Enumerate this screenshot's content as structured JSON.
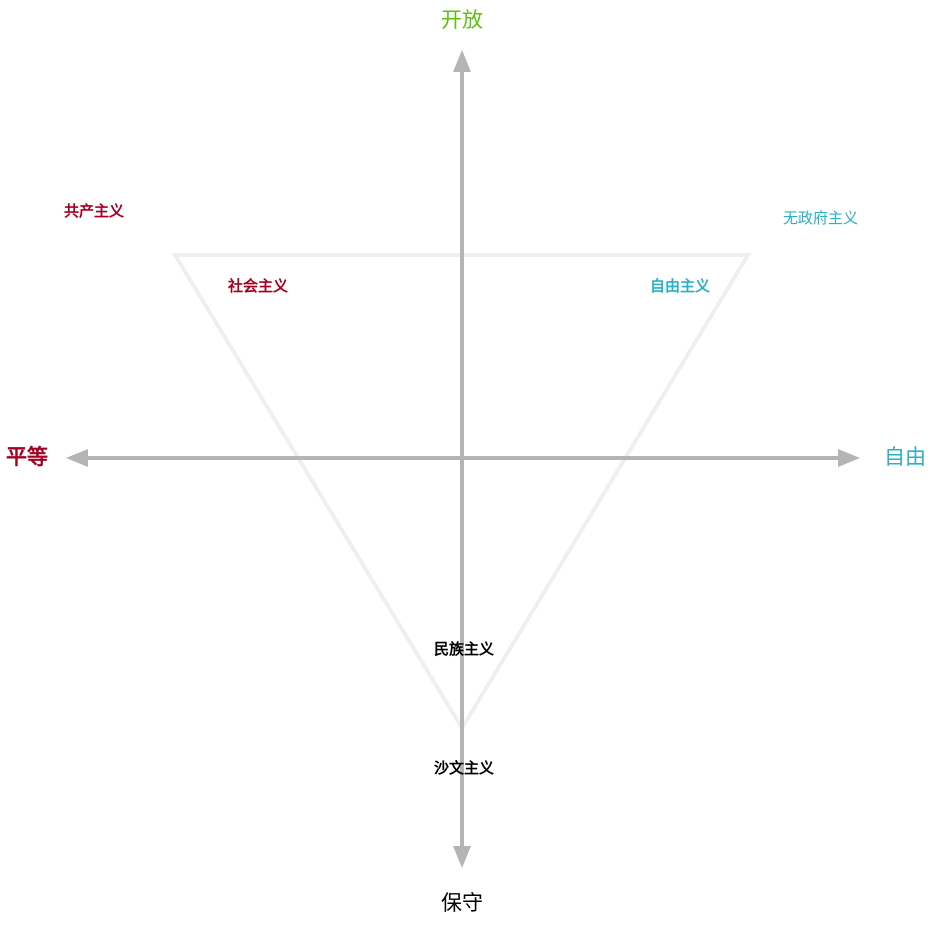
{
  "colors": {
    "open": "#5bc30a",
    "equality": "#a50021",
    "liberty": "#2bb1c4",
    "conservative": "#000000",
    "axis": "#b4b4b4",
    "triangle": "#efefef"
  },
  "axes": {
    "top": "开放",
    "bottom": "保守",
    "left": "平等",
    "right": "自由"
  },
  "ideologies": {
    "communism": "共产主义",
    "socialism": "社会主义",
    "anarchism": "无政府主义",
    "liberalism": "自由主义",
    "nationalism": "民族主义",
    "chauvinism": "沙文主义"
  }
}
